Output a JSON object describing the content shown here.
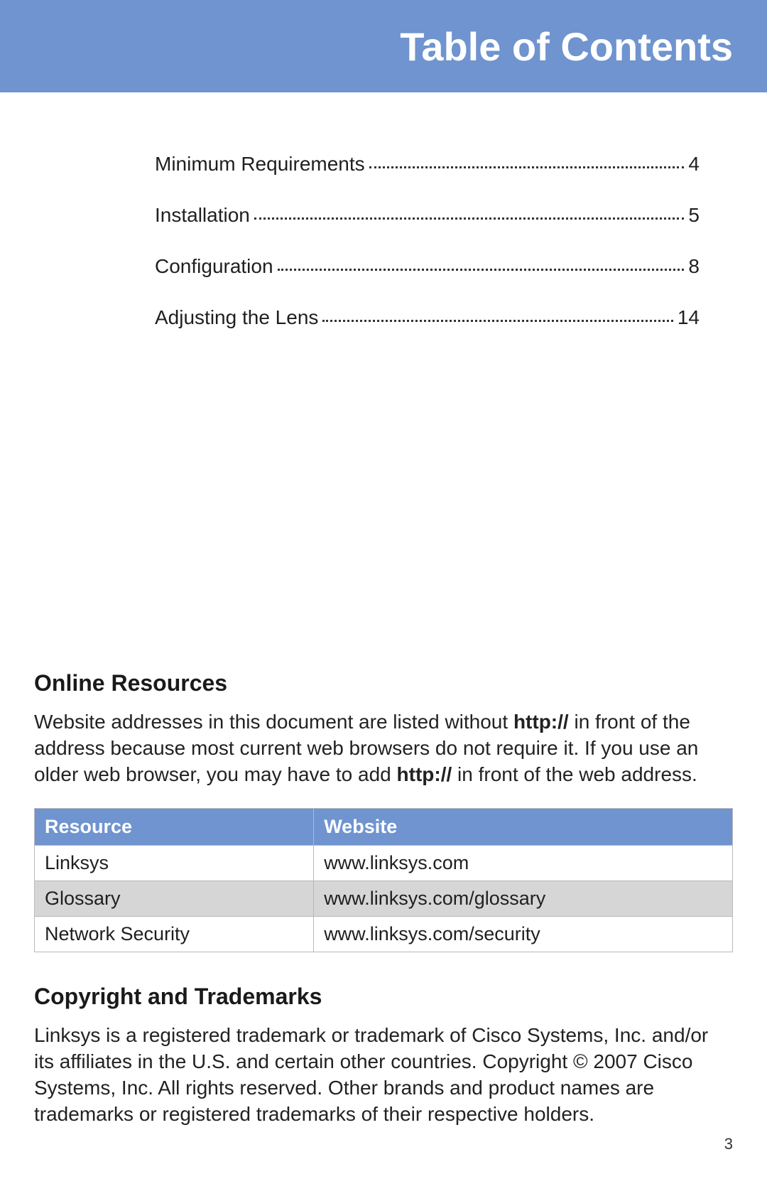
{
  "header": {
    "title": "Table of Contents"
  },
  "toc": {
    "items": [
      {
        "label": "Minimum Requirements",
        "page": "4"
      },
      {
        "label": "Installation",
        "page": "5"
      },
      {
        "label": "Configuration",
        "page": "8"
      },
      {
        "label": "Adjusting the Lens",
        "page": "14"
      }
    ]
  },
  "online_resources": {
    "heading": "Online Resources",
    "para_before": "Website addresses in this document are listed without ",
    "bold1": "http://",
    "para_mid": " in front of the address because most current web browsers do not require it. If you use an older web browser, you may have to add ",
    "bold2": "http://",
    "para_after": " in front of the web address.",
    "table": {
      "columns": [
        "Resource",
        "Website"
      ],
      "rows": [
        [
          "Linksys",
          "www.linksys.com"
        ],
        [
          "Glossary",
          "www.linksys.com/glossary"
        ],
        [
          "Network Security",
          "www.linksys.com/security"
        ]
      ],
      "header_bg": "#6f94cf",
      "header_fg": "#ffffff",
      "alt_row_bg": "#d6d6d6",
      "border_color": "#b9b9b9"
    }
  },
  "copyright": {
    "heading": "Copyright and Trademarks",
    "text": "Linksys is a registered trademark or trademark of Cisco Systems, Inc. and/or its affiliates in the U.S. and certain other countries. Copyright © 2007 Cisco Systems, Inc. All rights reserved. Other brands and product names are trademarks or registered trademarks of their respective holders."
  },
  "page_number": "3",
  "colors": {
    "brand_blue": "#6f94cf",
    "text": "#201f1f",
    "white": "#ffffff"
  }
}
